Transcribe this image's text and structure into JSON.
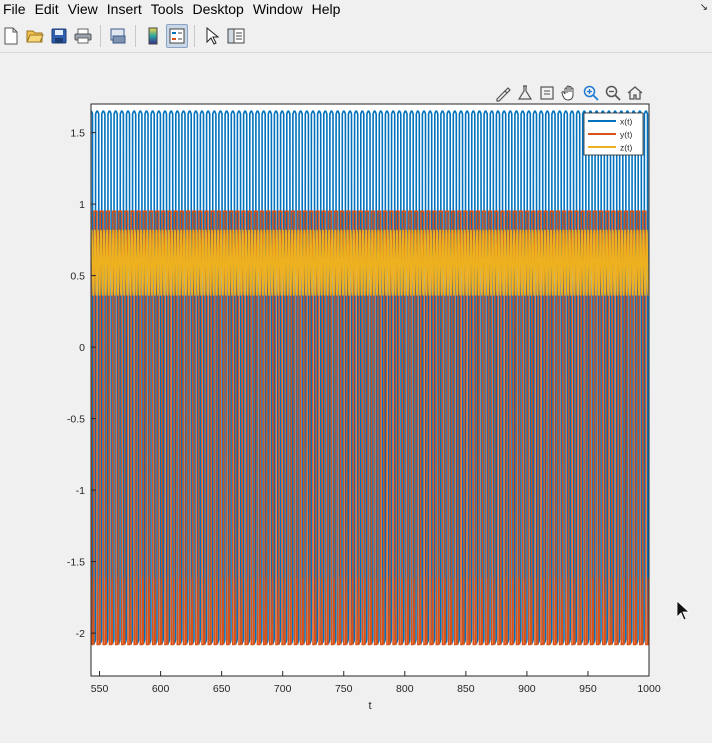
{
  "menu": {
    "items": [
      "File",
      "Edit",
      "View",
      "Insert",
      "Tools",
      "Desktop",
      "Window",
      "Help"
    ],
    "window_arrow": "↘"
  },
  "toolbar": {
    "icons": [
      "new-figure-icon",
      "open-file-icon",
      "save-icon",
      "print-icon",
      "print-preview-icon",
      "colorbar-icon",
      "legend-icon",
      "edit-plot-arrow-icon",
      "property-inspector-icon"
    ]
  },
  "axes_toolbar": {
    "icons": [
      "brush-icon",
      "data-tips-icon",
      "export-icon",
      "pan-hand-icon",
      "zoom-in-icon",
      "zoom-out-icon",
      "home-restore-view-icon"
    ]
  },
  "chart_data": {
    "type": "line",
    "title": "",
    "xlabel": "t",
    "ylabel": "",
    "xlim": [
      543,
      1000
    ],
    "ylim": [
      -2.3,
      1.7
    ],
    "x_ticks": [
      550,
      600,
      650,
      700,
      750,
      800,
      850,
      900,
      950,
      1000
    ],
    "x_tick_labels": [
      "550",
      "600",
      "650",
      "700",
      "750",
      "800",
      "850",
      "900",
      "950",
      "1000"
    ],
    "y_ticks": [
      1.5,
      1,
      0.5,
      0,
      -0.5,
      -1,
      -1.5,
      -2
    ],
    "y_tick_labels": [
      "1.5",
      "1",
      "0.5",
      "0",
      "-0.5",
      "-1",
      "-1.5",
      "-2"
    ],
    "grid": false,
    "legend_position": "top-right",
    "period": 5.05,
    "series": [
      {
        "name": "x(t)",
        "color": "#0072bd",
        "min": -2.08,
        "max": 1.65
      },
      {
        "name": "y(t)",
        "color": "#d95319",
        "min": -2.08,
        "max": 0.95
      },
      {
        "name": "z(t)",
        "color": "#edb120",
        "min": 0.36,
        "max": 0.82
      }
    ]
  },
  "colors": {
    "axes_border": "#262626",
    "background": "#f0f0f0"
  }
}
